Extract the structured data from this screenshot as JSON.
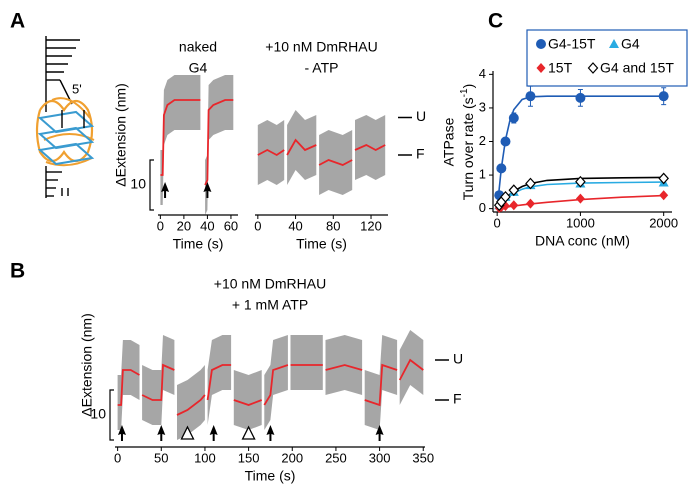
{
  "schematic": {
    "label": "5'"
  },
  "chart_data": [
    {
      "type": "line",
      "panel": "A",
      "title": "naked",
      "subtitle": "G4",
      "xlabel": "Time (s)",
      "ylabel": "ΔExtension (nm)",
      "scalebar": 10,
      "xlim": [
        -2,
        66
      ],
      "ylim": [
        -12,
        23
      ],
      "xticks": [
        0,
        20,
        40,
        60
      ],
      "x": [
        0,
        2,
        3,
        6,
        12,
        20,
        30,
        34,
        36,
        38,
        40,
        41,
        45,
        55,
        62
      ],
      "noise": {
        "color": "#a6a6a6",
        "upper": [
          1,
          1,
          13,
          15,
          16,
          16,
          16,
          16,
          null,
          -1,
          0,
          14,
          15,
          16,
          16
        ],
        "lower": [
          -10,
          -10,
          2,
          4,
          5,
          5,
          5,
          5,
          null,
          -12,
          -11,
          3,
          4,
          5,
          5
        ]
      },
      "series": [
        {
          "color": "#e8262b",
          "values": [
            -4,
            -4,
            8,
            10,
            11,
            11,
            11,
            11,
            null,
            -6,
            -5,
            9,
            10,
            11,
            11
          ]
        }
      ],
      "arrows": [
        4,
        40
      ]
    },
    {
      "type": "line",
      "title": "+10 nM DmRHAU",
      "subtitle": "- ATP",
      "xlabel": "Time (s)",
      "xlim": [
        -3,
        138
      ],
      "ylim": [
        -12,
        23
      ],
      "xticks": [
        0,
        40,
        80,
        120
      ],
      "x": [
        0,
        10,
        20,
        28,
        30,
        31,
        40,
        50,
        62,
        63,
        65,
        75,
        90,
        100,
        102,
        103,
        115,
        125,
        135
      ],
      "noise": {
        "color": "#a6a6a6",
        "upper": [
          6,
          7,
          6,
          7,
          null,
          6,
          9,
          7,
          8,
          null,
          4,
          5,
          4,
          5,
          null,
          7,
          8,
          7,
          8
        ],
        "lower": [
          -6,
          -5,
          -6,
          -5,
          null,
          -6,
          -3,
          -5,
          -4,
          null,
          -8,
          -7,
          -8,
          -7,
          null,
          -5,
          -4,
          -5,
          -4
        ]
      },
      "series": [
        {
          "color": "#e8262b",
          "values": [
            0,
            1,
            0,
            1,
            null,
            0,
            3,
            1,
            2,
            null,
            -2,
            -1,
            -2,
            -1,
            null,
            1,
            2,
            1,
            2
          ]
        }
      ],
      "levels": [
        {
          "value": 7.5,
          "label": "U"
        },
        {
          "value": 0,
          "label": "F"
        }
      ]
    },
    {
      "type": "line",
      "panel": "B",
      "title": "+10 nM DmRHAU",
      "subtitle": "+ 1 mM ATP",
      "xlabel": "Time (s)",
      "ylabel": "ΔExtension (nm)",
      "scalebar": 10,
      "xlim": [
        -3,
        352
      ],
      "ylim": [
        -9,
        15
      ],
      "xticks": [
        0,
        50,
        100,
        150,
        200,
        250,
        300,
        350
      ],
      "x": [
        0,
        4,
        6,
        15,
        25,
        26.5,
        28,
        40,
        50,
        52,
        65,
        66.5,
        68,
        80,
        95,
        100,
        101.5,
        103,
        108,
        120,
        130,
        131.5,
        133,
        150,
        165,
        166.5,
        168,
        175,
        178,
        195,
        196.5,
        198,
        215,
        235,
        236.5,
        238,
        260,
        280,
        281.5,
        283,
        300,
        303,
        320,
        321.5,
        323,
        335,
        350
      ],
      "noise": {
        "color": "#a6a6a6",
        "upper": [
          5,
          5,
          12,
          12,
          11,
          null,
          7,
          6,
          6,
          13,
          12,
          null,
          3,
          4,
          6,
          7,
          null,
          6,
          12,
          13,
          13,
          null,
          6,
          5,
          6,
          null,
          5,
          7,
          12,
          13,
          null,
          13,
          13,
          13,
          null,
          12,
          13,
          12,
          null,
          6,
          5,
          13,
          12,
          null,
          10,
          14,
          12
        ],
        "lower": [
          -6,
          -6,
          1,
          1,
          0,
          null,
          -4,
          -5,
          -5,
          2,
          1,
          null,
          -8,
          -7,
          -5,
          -4,
          null,
          -5,
          1,
          2,
          2,
          null,
          -5,
          -6,
          -5,
          null,
          -6,
          -4,
          1,
          2,
          null,
          2,
          2,
          2,
          null,
          1,
          2,
          1,
          null,
          -5,
          -6,
          2,
          1,
          null,
          -1,
          3,
          1
        ]
      },
      "series": [
        {
          "color": "#e8262b",
          "values": [
            -1,
            -1,
            6,
            6,
            5,
            null,
            1,
            0,
            0,
            7,
            6,
            null,
            -3,
            -2,
            0,
            1,
            null,
            0,
            6,
            7,
            7,
            null,
            0,
            -1,
            0,
            null,
            -1,
            1,
            6,
            7,
            null,
            7,
            7,
            7,
            null,
            6,
            7,
            6,
            null,
            0,
            -1,
            7,
            6,
            null,
            4,
            8,
            6
          ]
        }
      ],
      "levels": [
        {
          "value": 8,
          "label": "U"
        },
        {
          "value": 0,
          "label": "F"
        }
      ],
      "arrows": [
        5,
        50,
        110,
        175,
        300
      ],
      "open_triangles": [
        80,
        150
      ]
    },
    {
      "type": "scatter",
      "panel": "C",
      "xlabel": "DNA conc (nM)",
      "ylabel": {
        "line1": "ATPase",
        "line2": "Turn over rate (s",
        "sup": "-1",
        "close": ")"
      },
      "xlim": [
        -50,
        2100
      ],
      "ylim": [
        -0.1,
        4.1
      ],
      "xticks": [
        0,
        1000,
        2000
      ],
      "yticks": [
        0,
        1,
        2,
        3,
        4
      ],
      "x": [
        25,
        50,
        100,
        200,
        400,
        1000,
        2000
      ],
      "series": [
        {
          "name": "G4-15T",
          "color": "#1f5cb5",
          "marker": "circle",
          "values": [
            0.4,
            1.2,
            2.0,
            2.7,
            3.35,
            3.3,
            3.35
          ],
          "errors": [
            0.05,
            0.1,
            0.1,
            0.15,
            0.3,
            0.25,
            0.25
          ]
        },
        {
          "name": "G4",
          "color": "#29abe2",
          "marker": "triangle",
          "values": [
            0.1,
            0.2,
            0.35,
            0.5,
            0.7,
            0.75,
            0.78
          ]
        },
        {
          "name": "15T",
          "color": "#e8262b",
          "marker": "diamond",
          "values": [
            0.02,
            0.05,
            0.08,
            0.1,
            0.15,
            0.3,
            0.4
          ]
        },
        {
          "name": "G4 and 15T",
          "color": "#000000",
          "marker": "open-diamond",
          "values": [
            0.1,
            0.2,
            0.35,
            0.55,
            0.75,
            0.8,
            0.9
          ]
        }
      ],
      "fit_x": [
        0,
        50,
        100,
        150,
        200,
        300,
        400,
        600,
        1000,
        1500,
        2000
      ],
      "fits": [
        {
          "color": "#1f5cb5",
          "values": [
            0,
            1.2,
            2.05,
            2.6,
            2.95,
            3.25,
            3.33,
            3.35,
            3.35,
            3.35,
            3.35
          ]
        },
        {
          "color": "#29abe2",
          "values": [
            0,
            0.15,
            0.28,
            0.38,
            0.46,
            0.58,
            0.65,
            0.72,
            0.76,
            0.78,
            0.79
          ]
        },
        {
          "color": "#e8262b",
          "values": [
            0,
            0.02,
            0.04,
            0.06,
            0.08,
            0.11,
            0.14,
            0.19,
            0.27,
            0.34,
            0.39
          ]
        },
        {
          "color": "#000000",
          "values": [
            0,
            0.15,
            0.3,
            0.42,
            0.52,
            0.66,
            0.75,
            0.84,
            0.9,
            0.92,
            0.93
          ]
        }
      ]
    }
  ]
}
